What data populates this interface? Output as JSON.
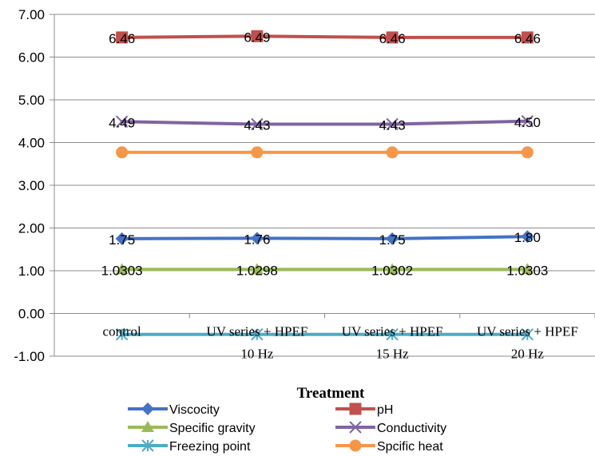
{
  "chart_data": {
    "type": "line",
    "title": "",
    "xlabel": "Treatment",
    "ylabel": "",
    "ylim": [
      -1,
      7
    ],
    "y_ticks": [
      "-1.00",
      "0.00",
      "1.00",
      "2.00",
      "3.00",
      "4.00",
      "5.00",
      "6.00",
      "7.00"
    ],
    "categories": [
      [
        "control"
      ],
      [
        "UV series + HPEF",
        "10 Hz"
      ],
      [
        "UV series + HPEF",
        "15 Hz"
      ],
      [
        "UV series + HPEF",
        "20 Hz"
      ]
    ],
    "grid": true,
    "legend_position": "bottom",
    "series": [
      {
        "name": "Viscocity",
        "values": [
          1.75,
          1.76,
          1.75,
          1.8
        ],
        "labels": [
          "1.75",
          "1.76",
          "1.75",
          "1.80"
        ],
        "color": "#4472C4",
        "marker": "diamond"
      },
      {
        "name": "pH",
        "values": [
          6.46,
          6.49,
          6.46,
          6.46
        ],
        "labels": [
          "6.46",
          "6.49",
          "6.46",
          "6.46"
        ],
        "color": "#C0504D",
        "marker": "square"
      },
      {
        "name": "Specific gravity",
        "values": [
          1.0303,
          1.0298,
          1.0302,
          1.0303
        ],
        "labels": [
          "1.0303",
          "1.0298",
          "1.0302",
          "1.0303"
        ],
        "color": "#9BBB59",
        "marker": "triangle"
      },
      {
        "name": "Conductivity",
        "values": [
          4.49,
          4.43,
          4.43,
          4.5
        ],
        "labels": [
          "4.49",
          "4.43",
          "4.43",
          "4.50"
        ],
        "color": "#8064A2",
        "marker": "x"
      },
      {
        "name": "Freezing point",
        "values": [
          -0.49,
          -0.49,
          -0.49,
          -0.49
        ],
        "labels": [],
        "color": "#4BACC6",
        "marker": "star"
      },
      {
        "name": "Spcific heat",
        "values": [
          3.77,
          3.77,
          3.77,
          3.77
        ],
        "labels": [],
        "color": "#F79646",
        "marker": "circle"
      }
    ]
  }
}
